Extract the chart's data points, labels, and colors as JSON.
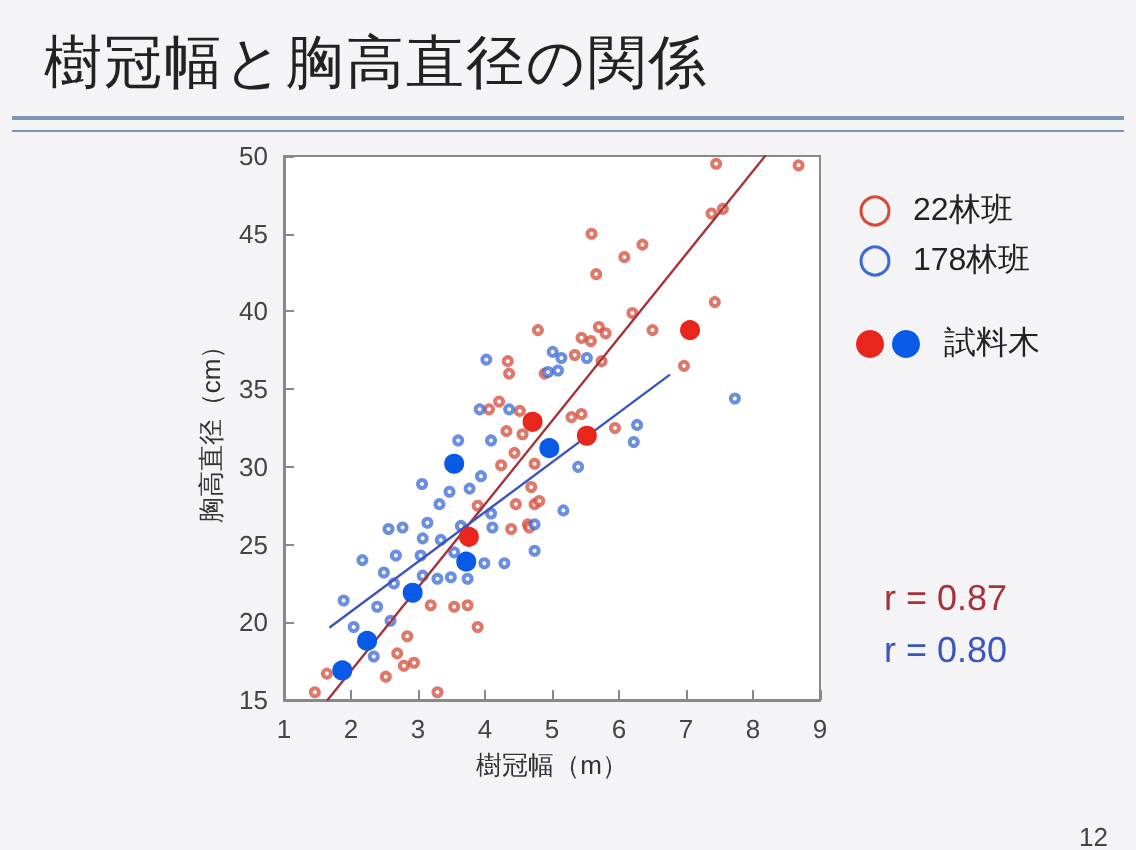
{
  "chart_data": {
    "type": "scatter",
    "title": "樹冠幅と胸高直径の関係",
    "xlabel": "樹冠幅（m）",
    "ylabel": "胸高直径（cm）",
    "xlim": [
      1,
      9
    ],
    "xticks": [
      1,
      2,
      3,
      4,
      5,
      6,
      7,
      8,
      9
    ],
    "ylim": [
      15,
      50
    ],
    "yticks": [
      15,
      20,
      25,
      30,
      35,
      40,
      45,
      50
    ],
    "grid": false,
    "legend": "right",
    "series": [
      {
        "name": "22林班",
        "color": "#d64a3a",
        "marker": "circle-open",
        "x": [
          4.79,
          4.34,
          4.36,
          4.89,
          4.21,
          4.06,
          4.52,
          4.56,
          4.32,
          4.24,
          4.44,
          4.74,
          4.69,
          4.46,
          4.74,
          4.64,
          4.39,
          3.89,
          3.74,
          3.54,
          3.19,
          2.84,
          2.69,
          2.94,
          2.52,
          3.29,
          1.64,
          1.46,
          7.45,
          8.68,
          7.55,
          7.38,
          5.59,
          6.35,
          6.08,
          5.66,
          7.43,
          6.2,
          6.5,
          5.7,
          5.8,
          5.58,
          5.44,
          5.34,
          5.74,
          6.97,
          5.29,
          5.44,
          5.94,
          4.81,
          4.66,
          2.79,
          3.89
        ],
        "values": [
          38.8,
          36.8,
          36.0,
          36.0,
          34.2,
          33.7,
          33.6,
          32.1,
          32.3,
          30.1,
          30.9,
          30.2,
          28.7,
          27.6,
          27.6,
          26.3,
          26.0,
          27.5,
          21.1,
          21.0,
          21.1,
          19.1,
          18.0,
          17.4,
          16.5,
          15.5,
          16.7,
          15.5,
          49.5,
          49.4,
          46.6,
          46.3,
          45.0,
          44.3,
          43.5,
          42.4,
          40.6,
          39.9,
          38.8,
          39.0,
          38.6,
          38.1,
          38.3,
          37.2,
          36.8,
          36.5,
          33.2,
          33.4,
          32.5,
          27.8,
          26.1,
          17.2,
          19.7
        ]
      },
      {
        "name": "178林班",
        "color": "#3a6ad6",
        "marker": "circle-open",
        "x": [
          4.02,
          5.01,
          3.92,
          4.36,
          4.09,
          3.6,
          3.06,
          3.32,
          3.47,
          3.77,
          3.94,
          4.74,
          4.29,
          4.11,
          4.09,
          3.64,
          3.14,
          2.77,
          2.56,
          3.07,
          3.34,
          3.54,
          3.04,
          2.67,
          2.17,
          2.49,
          2.64,
          3.07,
          3.29,
          3.49,
          3.74,
          3.99,
          1.89,
          2.39,
          2.59,
          2.04,
          2.34,
          5.14,
          5.52,
          4.94,
          5.09,
          7.73,
          6.27,
          6.22,
          5.39,
          5.17,
          4.74
        ],
        "values": [
          36.9,
          37.4,
          33.7,
          33.7,
          31.7,
          31.7,
          28.9,
          27.6,
          28.4,
          28.6,
          29.4,
          24.6,
          23.8,
          26.1,
          27.0,
          26.2,
          26.4,
          26.1,
          26.0,
          25.4,
          25.3,
          24.5,
          24.3,
          24.3,
          24.0,
          23.2,
          22.5,
          23.0,
          22.8,
          22.9,
          22.8,
          23.8,
          21.4,
          21.0,
          20.1,
          19.7,
          17.8,
          37.0,
          37.0,
          36.1,
          36.2,
          34.4,
          32.7,
          31.6,
          30.0,
          27.2,
          26.3
        ]
      },
      {
        "type": "line",
        "color": "#a8323a",
        "marker": "none",
        "x": [
          1.65,
          8.18
        ],
        "values": [
          15,
          50
        ]
      },
      {
        "type": "line",
        "color": "#3a55c0",
        "marker": "none",
        "x": [
          1.69,
          6.75
        ],
        "values": [
          19.7,
          35.9
        ]
      },
      {
        "name": "試料木",
        "colors": [
          "#e8261c",
          "#e8261c",
          "#e8261c",
          "#e8261c",
          "#0a5ae8",
          "#0a5ae8",
          "#0a5ae8",
          "#0a5ae8",
          "#0a5ae8",
          "#0a5ae8"
        ],
        "marker": "circle",
        "x": [
          4.71,
          3.76,
          5.52,
          7.06,
          3.54,
          4.96,
          3.72,
          2.92,
          2.24,
          1.87
        ],
        "values": [
          32.9,
          25.5,
          32.0,
          38.8,
          30.2,
          31.2,
          23.9,
          21.9,
          18.8,
          16.9
        ]
      }
    ],
    "annotations": [
      "r = 0.87",
      "r = 0.80",
      "12"
    ]
  }
}
